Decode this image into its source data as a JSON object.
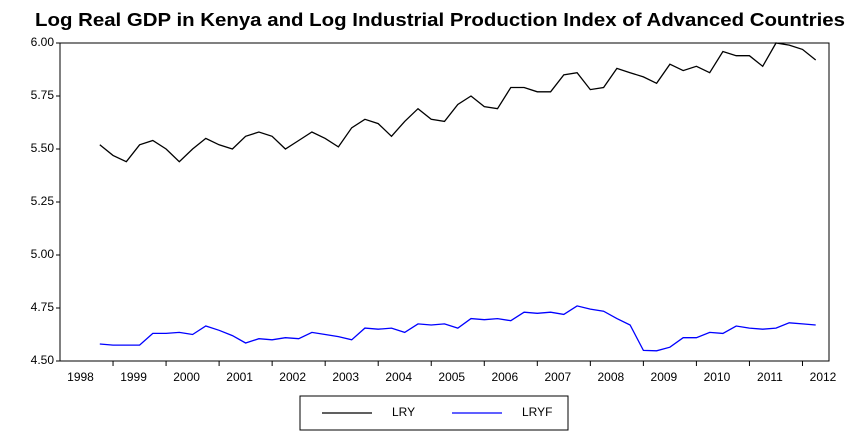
{
  "chart_data": {
    "type": "line",
    "title": "Log Real GDP in Kenya and Log Industrial Production Index of Advanced Countries",
    "x_labels": [
      "1998",
      "1999",
      "2000",
      "2001",
      "2002",
      "2003",
      "2004",
      "2005",
      "2006",
      "2007",
      "2008",
      "2009",
      "2010",
      "2011",
      "2012"
    ],
    "series": [
      {
        "name": "LRY",
        "color": "#000000",
        "values": [
          5.52,
          5.47,
          5.44,
          5.52,
          5.54,
          5.5,
          5.44,
          5.5,
          5.55,
          5.52,
          5.5,
          5.56,
          5.58,
          5.56,
          5.5,
          5.54,
          5.58,
          5.55,
          5.51,
          5.6,
          5.64,
          5.62,
          5.56,
          5.63,
          5.69,
          5.64,
          5.63,
          5.71,
          5.75,
          5.7,
          5.69,
          5.79,
          5.79,
          5.77,
          5.77,
          5.85,
          5.86,
          5.78,
          5.79,
          5.88,
          5.86,
          5.84,
          5.81,
          5.9,
          5.87,
          5.89,
          5.86,
          5.96,
          5.94,
          5.94,
          5.89,
          6.0,
          5.99,
          5.97,
          5.92
        ]
      },
      {
        "name": "LRYF",
        "color": "#0000ff",
        "values": [
          4.58,
          4.575,
          4.575,
          4.575,
          4.63,
          4.63,
          4.635,
          4.625,
          4.665,
          4.645,
          4.62,
          4.585,
          4.605,
          4.6,
          4.61,
          4.605,
          4.635,
          4.625,
          4.615,
          4.6,
          4.655,
          4.65,
          4.655,
          4.635,
          4.675,
          4.67,
          4.675,
          4.655,
          4.7,
          4.695,
          4.7,
          4.69,
          4.73,
          4.725,
          4.73,
          4.72,
          4.76,
          4.745,
          4.735,
          4.7,
          4.67,
          4.55,
          4.548,
          4.565,
          4.61,
          4.61,
          4.635,
          4.63,
          4.665,
          4.655,
          4.65,
          4.655,
          4.68,
          4.675,
          4.67
        ]
      }
    ],
    "ylim": [
      4.5,
      6.0
    ],
    "yticks": [
      {
        "value": 4.5,
        "label": "4.50"
      },
      {
        "value": 4.75,
        "label": "4.75"
      },
      {
        "value": 5.0,
        "label": "5.00"
      },
      {
        "value": 5.25,
        "label": "5.25"
      },
      {
        "value": 5.5,
        "label": "5.50"
      },
      {
        "value": 5.75,
        "label": "5.75"
      },
      {
        "value": 6.0,
        "label": "6.00"
      }
    ],
    "legend": "bottom"
  }
}
